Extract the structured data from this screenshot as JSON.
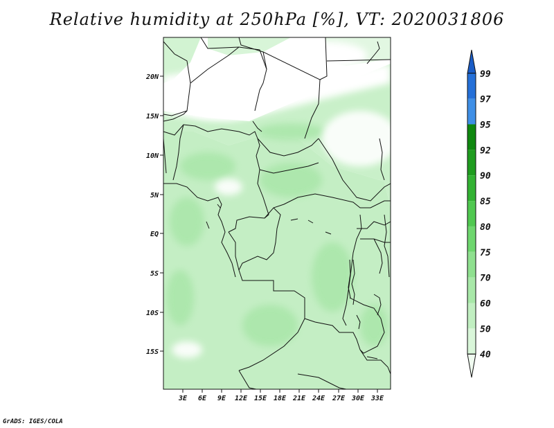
{
  "title": "Relative humidity at 250hPa [%], VT: 2020031806",
  "credit": "GrADS: IGES/COLA",
  "lat_ticks": [
    "20N",
    "15N",
    "10N",
    "5N",
    "EQ",
    "5S",
    "10S",
    "15S"
  ],
  "lon_ticks": [
    "3E",
    "6E",
    "9E",
    "12E",
    "15E",
    "18E",
    "21E",
    "24E",
    "27E",
    "30E",
    "33E"
  ],
  "colorbar": {
    "levels": [
      "40",
      "50",
      "60",
      "70",
      "75",
      "80",
      "85",
      "90",
      "92",
      "95",
      "97",
      "99"
    ],
    "colors": [
      "#f0fbf0",
      "#d9f6d9",
      "#c1efc1",
      "#a8e8a8",
      "#8fe08f",
      "#6ed66e",
      "#50c850",
      "#33b233",
      "#1f9c1f",
      "#0f880f",
      "#3f8fe6",
      "#2570d8",
      "#1a5cc6"
    ]
  }
}
